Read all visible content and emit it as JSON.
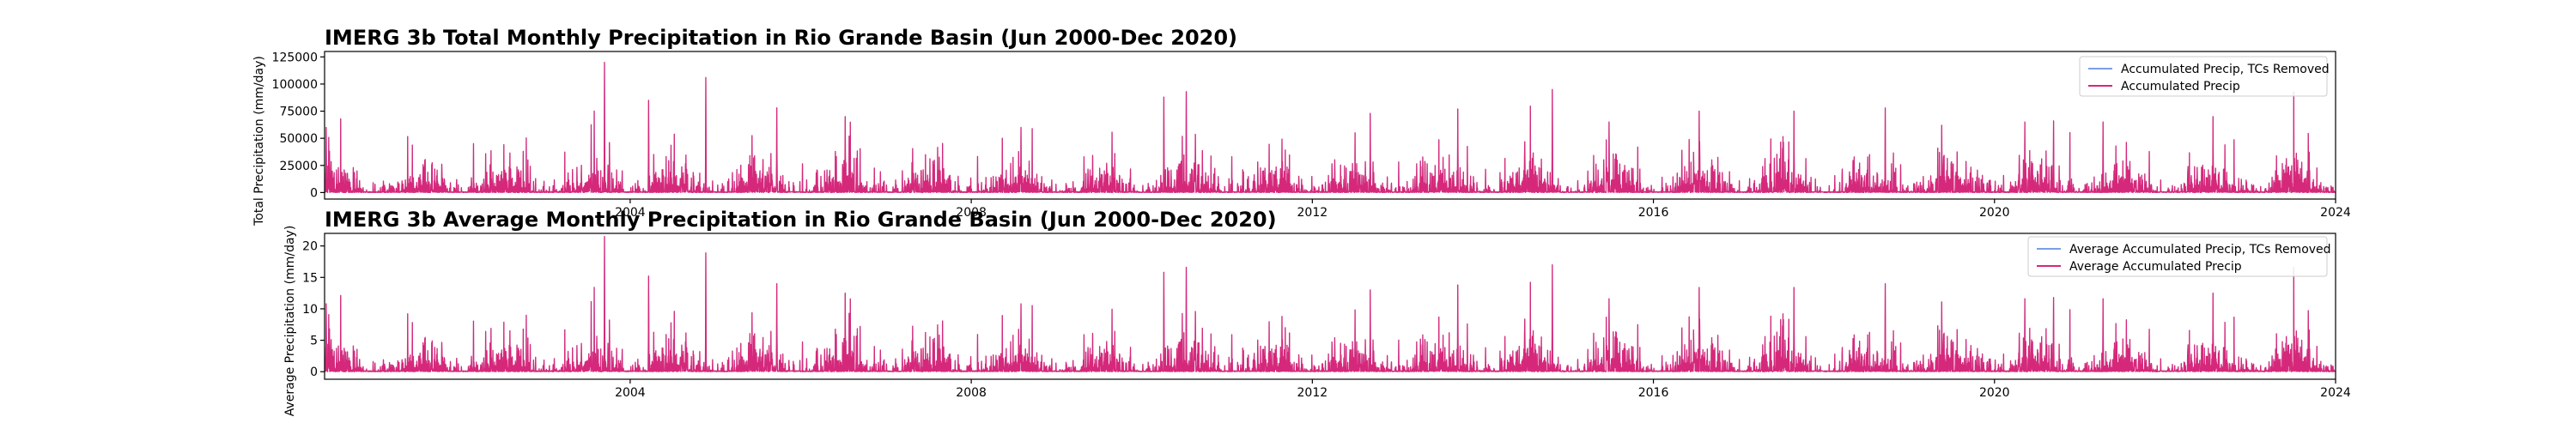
{
  "chart_data": [
    {
      "type": "line",
      "title": "IMERG 3b Total Monthly Precipitation in Rio Grande Basin (Jun 2000-Dec 2020)",
      "ylabel": "Total Precipitation (mm/day)",
      "xlim": [
        "2000-06-01",
        "2024-01-01"
      ],
      "ylim": [
        -6000,
        130000
      ],
      "x_ticks": [
        {
          "date": "2004-01-01",
          "label": "2004"
        },
        {
          "date": "2008-01-01",
          "label": "2008"
        },
        {
          "date": "2012-01-01",
          "label": "2012"
        },
        {
          "date": "2016-01-01",
          "label": "2016"
        },
        {
          "date": "2020-01-01",
          "label": "2020"
        },
        {
          "date": "2024-01-01",
          "label": "2024"
        }
      ],
      "y_ticks": [
        0,
        25000,
        50000,
        75000,
        100000,
        125000
      ],
      "y_tick_labels": [
        "0",
        "25000",
        "50000",
        "75000",
        "100000",
        "125000"
      ],
      "legend": {
        "position": "top-right"
      },
      "grid": false,
      "series": [
        {
          "name": "Accumulated Precip, TCs Removed",
          "color": "#7b9fe6",
          "values": []
        },
        {
          "name": "Accumulated Precip",
          "color": "#d6287a",
          "values": []
        }
      ],
      "seed": 7,
      "scale": 5600,
      "peaks": [
        [
          "2000-06-08",
          60000
        ],
        [
          "2003-09-13",
          120000
        ],
        [
          "2004-03-20",
          85000
        ],
        [
          "2004-11-20",
          106000
        ],
        [
          "2005-09-20",
          78000
        ],
        [
          "2006-07-10",
          70000
        ],
        [
          "2008-08-01",
          60000
        ],
        [
          "2010-04-05",
          88000
        ],
        [
          "2010-07-10",
          93000
        ],
        [
          "2012-09-05",
          73000
        ],
        [
          "2013-09-15",
          77000
        ],
        [
          "2014-10-25",
          95000
        ],
        [
          "2015-06-25",
          65000
        ],
        [
          "2016-07-15",
          75000
        ],
        [
          "2017-08-25",
          75000
        ],
        [
          "2018-09-20",
          78000
        ],
        [
          "2019-05-20",
          62000
        ],
        [
          "2020-05-10",
          65000
        ],
        [
          "2020-09-10",
          66000
        ],
        [
          "2021-04-10",
          65000
        ],
        [
          "2022-07-25",
          70000
        ]
      ]
    },
    {
      "type": "line",
      "title": "IMERG 3b Average Monthly Precipitation in Rio Grande Basin (Jun 2000-Dec 2020)",
      "ylabel": "Average Precipitation (mm/day)",
      "xlim": [
        "2000-06-01",
        "2024-01-01"
      ],
      "ylim": [
        -1.2,
        22
      ],
      "x_ticks": [
        {
          "date": "2004-01-01",
          "label": "2004"
        },
        {
          "date": "2008-01-01",
          "label": "2008"
        },
        {
          "date": "2012-01-01",
          "label": "2012"
        },
        {
          "date": "2016-01-01",
          "label": "2016"
        },
        {
          "date": "2020-01-01",
          "label": "2020"
        },
        {
          "date": "2024-01-01",
          "label": "2024"
        }
      ],
      "y_ticks": [
        0,
        5,
        10,
        15,
        20
      ],
      "y_tick_labels": [
        "0",
        "5",
        "10",
        "15",
        "20"
      ],
      "legend": {
        "position": "top-right"
      },
      "grid": false,
      "series": [
        {
          "name": "Average Accumulated Precip, TCs Removed",
          "color": "#7b9fe6",
          "values": []
        },
        {
          "name": "Average Accumulated Precip",
          "color": "#d6287a",
          "values": []
        }
      ],
      "seed": 7,
      "scale": 1.0,
      "peaks": [
        [
          "2000-06-08",
          10.8
        ],
        [
          "2003-09-13",
          21.5
        ],
        [
          "2004-03-20",
          15.2
        ],
        [
          "2004-11-20",
          18.9
        ],
        [
          "2005-09-20",
          14.0
        ],
        [
          "2006-07-10",
          12.5
        ],
        [
          "2008-08-01",
          10.8
        ],
        [
          "2010-04-05",
          15.8
        ],
        [
          "2010-07-10",
          16.6
        ],
        [
          "2012-09-05",
          13.0
        ],
        [
          "2013-09-15",
          13.8
        ],
        [
          "2014-10-25",
          17.0
        ],
        [
          "2015-06-25",
          11.6
        ],
        [
          "2016-07-15",
          13.4
        ],
        [
          "2017-08-25",
          13.4
        ],
        [
          "2018-09-20",
          14.0
        ],
        [
          "2019-05-20",
          11.1
        ],
        [
          "2020-05-10",
          11.6
        ],
        [
          "2020-09-10",
          11.8
        ],
        [
          "2021-04-10",
          11.6
        ],
        [
          "2022-07-25",
          12.5
        ]
      ]
    }
  ]
}
